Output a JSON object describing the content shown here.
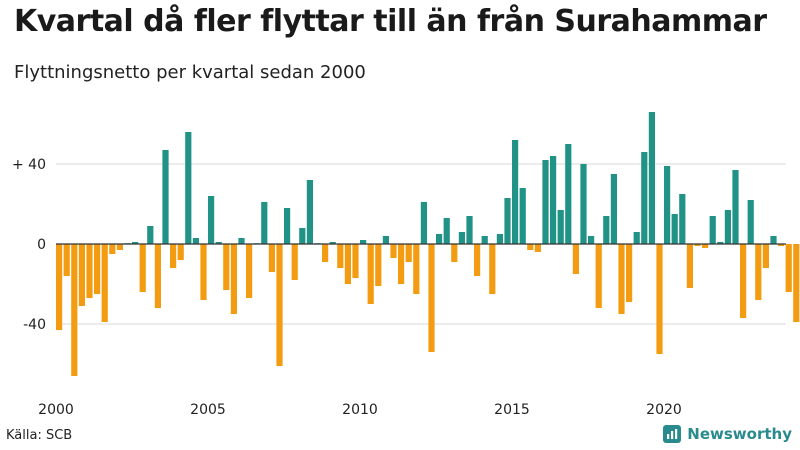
{
  "title": "Kvartal då fler flyttar till än från Surahammar",
  "subtitle": "Flyttningsnetto per kvartal sedan 2000",
  "source": "Källa: SCB",
  "brand": "Newsworthy",
  "colors": {
    "positive": "#219386",
    "negative": "#F39C12",
    "brand": "#2a8b8e",
    "icon": "newsworthy-logo-icon"
  },
  "chart_data": {
    "type": "bar",
    "x_ticks": [
      "2000",
      "2005",
      "2010",
      "2015",
      "2020"
    ],
    "y_ticks": [
      "+ 40",
      "0",
      "-40"
    ],
    "y_tick_values": [
      40,
      0,
      -40
    ],
    "ylim": [
      -70,
      70
    ],
    "x_start_year": 2000,
    "periods": [
      "2000 K1",
      "2000 K2",
      "2000 K3",
      "2000 K4",
      "2001 K1",
      "2001 K2",
      "2001 K3",
      "2001 K4",
      "2002 K1",
      "2002 K2",
      "2002 K3",
      "2002 K4",
      "2003 K1",
      "2003 K2",
      "2003 K3",
      "2003 K4",
      "2004 K1",
      "2004 K2",
      "2004 K3",
      "2004 K4",
      "2005 K1",
      "2005 K2",
      "2005 K3",
      "2005 K4",
      "2006 K1",
      "2006 K2",
      "2006 K3",
      "2006 K4",
      "2007 K1",
      "2007 K2",
      "2007 K3",
      "2007 K4",
      "2008 K1",
      "2008 K2",
      "2008 K3",
      "2008 K4",
      "2009 K1",
      "2009 K2",
      "2009 K3",
      "2009 K4",
      "2010 K1",
      "2010 K2",
      "2010 K3",
      "2010 K4",
      "2011 K1",
      "2011 K2",
      "2011 K3",
      "2011 K4",
      "2012 K1",
      "2012 K2",
      "2012 K3",
      "2012 K4",
      "2013 K1",
      "2013 K2",
      "2013 K3",
      "2013 K4",
      "2014 K1",
      "2014 K2",
      "2014 K3",
      "2014 K4",
      "2015 K1",
      "2015 K2",
      "2015 K3",
      "2015 K4",
      "2016 K1",
      "2016 K2",
      "2016 K3",
      "2016 K4",
      "2017 K1",
      "2017 K2",
      "2017 K3",
      "2017 K4",
      "2018 K1",
      "2018 K2",
      "2018 K3",
      "2018 K4",
      "2019 K1",
      "2019 K2",
      "2019 K3",
      "2019 K4",
      "2020 K1",
      "2020 K2",
      "2020 K3",
      "2020 K4",
      "2021 K1",
      "2021 K2",
      "2021 K3",
      "2021 K4",
      "2022 K1",
      "2022 K2",
      "2022 K3",
      "2022 K4",
      "2023 K1",
      "2023 K2",
      "2023 K3",
      "2023 K4",
      "2024 K1",
      "2024 K2"
    ],
    "values": [
      -43,
      -16,
      -66,
      -31,
      -27,
      -25,
      -39,
      -5,
      -3,
      0,
      1,
      -24,
      9,
      -32,
      47,
      -12,
      -8,
      56,
      3,
      -28,
      24,
      1,
      -23,
      -35,
      3,
      -27,
      0,
      21,
      -14,
      -61,
      18,
      -18,
      8,
      32,
      0,
      -9,
      1,
      -12,
      -20,
      -17,
      2,
      -30,
      -21,
      4,
      -7,
      -20,
      -9,
      -25,
      21,
      -54,
      5,
      13,
      -9,
      6,
      14,
      -16,
      4,
      -25,
      5,
      23,
      52,
      28,
      -3,
      -4,
      42,
      44,
      17,
      50,
      -15,
      40,
      4,
      -32,
      14,
      35,
      -35,
      -29,
      6,
      46,
      66,
      -55,
      39,
      15,
      25,
      -22,
      -1,
      -2,
      14,
      1,
      17,
      37,
      -37,
      22,
      -28,
      -12,
      4,
      -1,
      -24,
      -39
    ]
  }
}
